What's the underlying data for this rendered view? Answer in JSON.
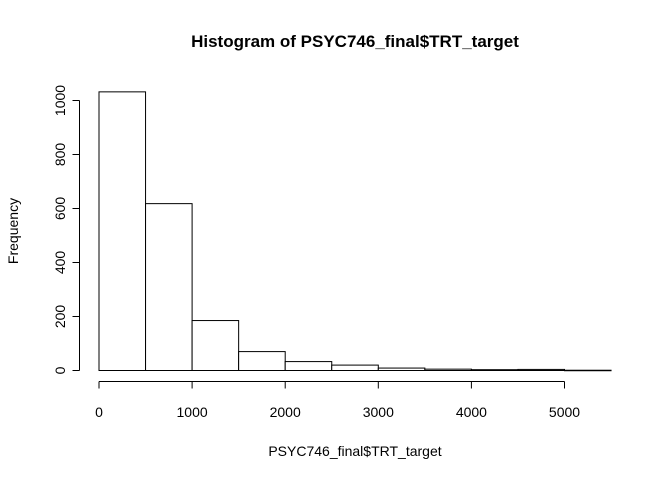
{
  "chart_data": {
    "type": "bar",
    "title": "Histogram of PSYC746_final$TRT_target",
    "xlabel": "PSYC746_final$TRT_target",
    "ylabel": "Frequency",
    "bin_width": 500,
    "bins": [
      {
        "start": 0,
        "end": 500,
        "count": 1032
      },
      {
        "start": 500,
        "end": 1000,
        "count": 618
      },
      {
        "start": 1000,
        "end": 1500,
        "count": 185
      },
      {
        "start": 1500,
        "end": 2000,
        "count": 70
      },
      {
        "start": 2000,
        "end": 2500,
        "count": 33
      },
      {
        "start": 2500,
        "end": 3000,
        "count": 20
      },
      {
        "start": 3000,
        "end": 3500,
        "count": 9
      },
      {
        "start": 3500,
        "end": 4000,
        "count": 5
      },
      {
        "start": 4000,
        "end": 4500,
        "count": 3
      },
      {
        "start": 4500,
        "end": 5000,
        "count": 4
      },
      {
        "start": 5000,
        "end": 5500,
        "count": 1
      }
    ],
    "x_ticks": [
      0,
      1000,
      2000,
      3000,
      4000,
      5000
    ],
    "x_tick_labels": [
      "0",
      "1000",
      "2000",
      "3000",
      "4000",
      "5000"
    ],
    "y_ticks": [
      0,
      200,
      400,
      600,
      800,
      1000
    ],
    "y_tick_labels": [
      "0",
      "200",
      "400",
      "600",
      "800",
      "1000"
    ],
    "xlim": [
      0,
      5500
    ],
    "ylim": [
      0,
      1032
    ],
    "grid": false,
    "legend": "none"
  }
}
